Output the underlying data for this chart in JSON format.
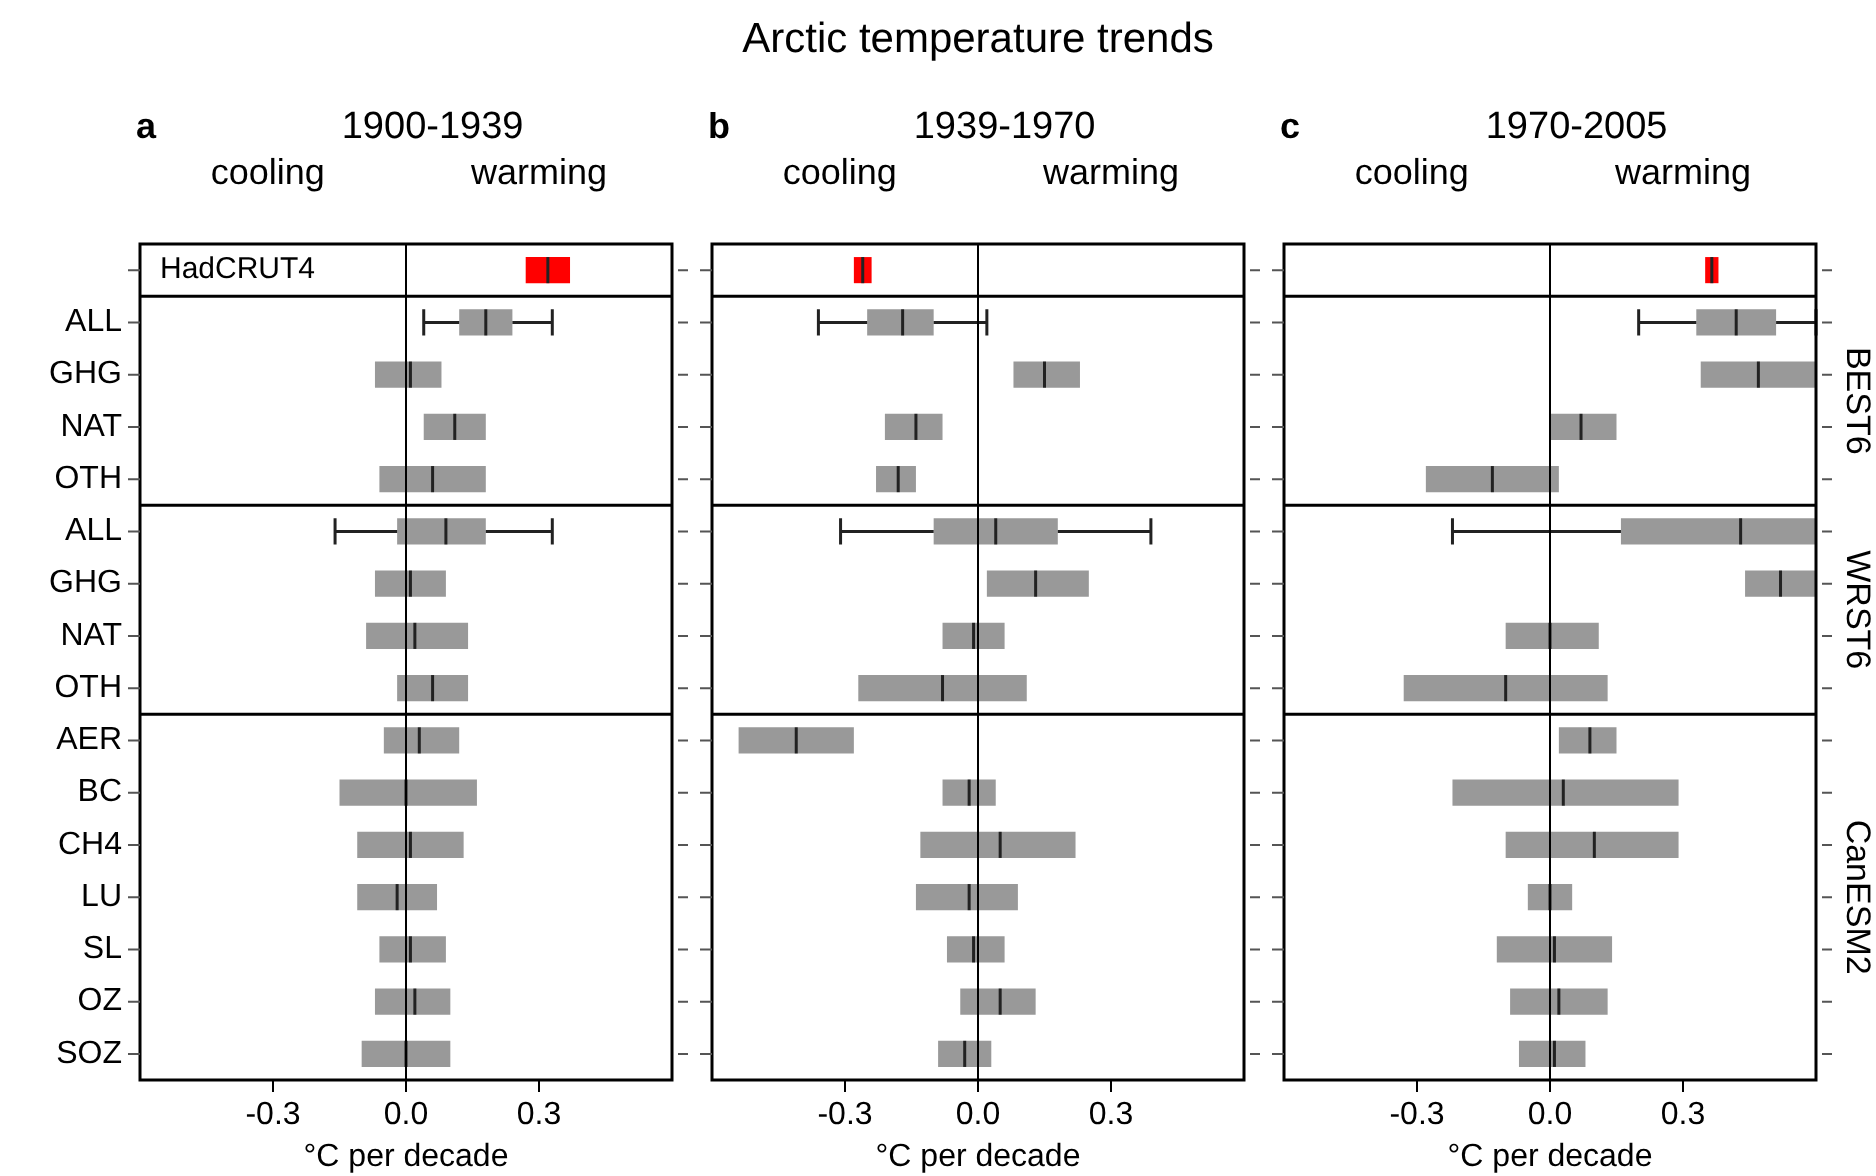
{
  "chart_data": [
    {
      "type": "other",
      "title": "Arctic temperature trends"
    },
    {
      "type": "box",
      "orientation": "horizontal",
      "title": "1900-1939",
      "annotations": [
        "a",
        "cooling",
        "warming"
      ],
      "categories": [
        null,
        "ALL",
        "GHG",
        "NAT",
        "OTH",
        "ALL",
        "GHG",
        "NAT",
        "OTH",
        "AER",
        "BC",
        "CH4",
        "LU",
        "SL",
        "OZ",
        "SOZ"
      ],
      "xlim": [
        -0.6,
        0.6
      ],
      "xticks": [
        {
          "value": -0.3,
          "label": "-0.3"
        },
        {
          "value": 0,
          "label": "0.0"
        },
        {
          "value": 0.3,
          "label": "0.3"
        }
      ],
      "xlabel": "°C per decade",
      "ref_lines": [
        {
          "axis": "x",
          "value": 0
        }
      ],
      "series": [
        {
          "name": "HadCRUT4",
          "color": "#ff0000",
          "boxes": [
            {
              "low": 0.27,
              "q1": 0.27,
              "median": 0.32,
              "q3": 0.37,
              "high": 0.37
            },
            null,
            null,
            null,
            null,
            null,
            null,
            null,
            null,
            null,
            null,
            null,
            null,
            null,
            null,
            null
          ]
        },
        {
          "color": "#999999",
          "boxes": [
            null,
            {
              "low": 0.04,
              "q1": 0.12,
              "median": 0.18,
              "q3": 0.24,
              "high": 0.33
            },
            {
              "low": -0.07,
              "q1": -0.07,
              "median": 0.01,
              "q3": 0.08,
              "high": 0.08
            },
            {
              "low": 0.04,
              "q1": 0.04,
              "median": 0.11,
              "q3": 0.18,
              "high": 0.18
            },
            {
              "low": -0.06,
              "q1": -0.06,
              "median": 0.06,
              "q3": 0.18,
              "high": 0.18
            },
            null,
            null,
            null,
            null,
            null,
            null,
            null,
            null,
            null,
            null,
            null
          ]
        },
        {
          "color": "#999999",
          "boxes": [
            null,
            null,
            null,
            null,
            null,
            {
              "low": -0.16,
              "q1": -0.02,
              "median": 0.09,
              "q3": 0.18,
              "high": 0.33
            },
            {
              "low": -0.07,
              "q1": -0.07,
              "median": 0.01,
              "q3": 0.09,
              "high": 0.09
            },
            {
              "low": -0.09,
              "q1": -0.09,
              "median": 0.02,
              "q3": 0.14,
              "high": 0.14
            },
            {
              "low": -0.02,
              "q1": -0.02,
              "median": 0.06,
              "q3": 0.14,
              "high": 0.14
            },
            null,
            null,
            null,
            null,
            null,
            null,
            null
          ]
        },
        {
          "color": "#999999",
          "boxes": [
            null,
            null,
            null,
            null,
            null,
            null,
            null,
            null,
            null,
            {
              "low": -0.05,
              "q1": -0.05,
              "median": 0.03,
              "q3": 0.12,
              "high": 0.12
            },
            {
              "low": -0.15,
              "q1": -0.15,
              "median": 0.0,
              "q3": 0.16,
              "high": 0.16
            },
            {
              "low": -0.11,
              "q1": -0.11,
              "median": 0.01,
              "q3": 0.13,
              "high": 0.13
            },
            {
              "low": -0.11,
              "q1": -0.11,
              "median": -0.02,
              "q3": 0.07,
              "high": 0.07
            },
            {
              "low": -0.06,
              "q1": -0.06,
              "median": 0.01,
              "q3": 0.09,
              "high": 0.09
            },
            {
              "low": -0.07,
              "q1": -0.07,
              "median": 0.02,
              "q3": 0.1,
              "high": 0.1
            },
            {
              "low": -0.1,
              "q1": -0.1,
              "median": 0.0,
              "q3": 0.1,
              "high": 0.1
            }
          ]
        }
      ]
    },
    {
      "type": "box",
      "orientation": "horizontal",
      "title": "1939-1970",
      "annotations": [
        "b",
        "cooling",
        "warming"
      ],
      "categories": [
        null,
        null,
        null,
        null,
        null,
        null,
        null,
        null,
        null,
        null,
        null,
        null,
        null,
        null,
        null,
        null
      ],
      "xlim": [
        -0.6,
        0.6
      ],
      "xticks": [
        {
          "value": -0.3,
          "label": "-0.3"
        },
        {
          "value": 0,
          "label": "0.0"
        },
        {
          "value": 0.3,
          "label": "0.3"
        }
      ],
      "xlabel": "°C per decade",
      "tick_labels": "x",
      "ref_lines": [
        {
          "axis": "x",
          "value": 0
        }
      ],
      "series": [
        {
          "color": "#ff0000",
          "boxes": [
            {
              "low": -0.28,
              "q1": -0.28,
              "median": -0.26,
              "q3": -0.24,
              "high": -0.24
            },
            null,
            null,
            null,
            null,
            null,
            null,
            null,
            null,
            null,
            null,
            null,
            null,
            null,
            null,
            null
          ]
        },
        {
          "color": "#999999",
          "boxes": [
            null,
            {
              "low": -0.36,
              "q1": -0.25,
              "median": -0.17,
              "q3": -0.1,
              "high": 0.02
            },
            {
              "low": 0.08,
              "q1": 0.08,
              "median": 0.15,
              "q3": 0.23,
              "high": 0.23
            },
            {
              "low": -0.21,
              "q1": -0.21,
              "median": -0.14,
              "q3": -0.08,
              "high": -0.08
            },
            {
              "low": -0.23,
              "q1": -0.23,
              "median": -0.18,
              "q3": -0.14,
              "high": -0.14
            },
            null,
            null,
            null,
            null,
            null,
            null,
            null,
            null,
            null,
            null,
            null
          ]
        },
        {
          "color": "#999999",
          "boxes": [
            null,
            null,
            null,
            null,
            null,
            {
              "low": -0.31,
              "q1": -0.1,
              "median": 0.04,
              "q3": 0.18,
              "high": 0.39
            },
            {
              "low": 0.02,
              "q1": 0.02,
              "median": 0.13,
              "q3": 0.25,
              "high": 0.25
            },
            {
              "low": -0.08,
              "q1": -0.08,
              "median": -0.01,
              "q3": 0.06,
              "high": 0.06
            },
            {
              "low": -0.27,
              "q1": -0.27,
              "median": -0.08,
              "q3": 0.11,
              "high": 0.11
            },
            null,
            null,
            null,
            null,
            null,
            null,
            null
          ]
        },
        {
          "color": "#999999",
          "boxes": [
            null,
            null,
            null,
            null,
            null,
            null,
            null,
            null,
            null,
            {
              "low": -0.54,
              "q1": -0.54,
              "median": -0.41,
              "q3": -0.28,
              "high": -0.28
            },
            {
              "low": -0.08,
              "q1": -0.08,
              "median": -0.02,
              "q3": 0.04,
              "high": 0.04
            },
            {
              "low": -0.13,
              "q1": -0.13,
              "median": 0.05,
              "q3": 0.22,
              "high": 0.22
            },
            {
              "low": -0.14,
              "q1": -0.14,
              "median": -0.02,
              "q3": 0.09,
              "high": 0.09
            },
            {
              "low": -0.07,
              "q1": -0.07,
              "median": -0.01,
              "q3": 0.06,
              "high": 0.06
            },
            {
              "low": -0.04,
              "q1": -0.04,
              "median": 0.05,
              "q3": 0.13,
              "high": 0.13
            },
            {
              "low": -0.09,
              "q1": -0.09,
              "median": -0.03,
              "q3": 0.03,
              "high": 0.03
            }
          ]
        }
      ]
    },
    {
      "type": "box",
      "orientation": "horizontal",
      "title": "1970-2005",
      "annotations": [
        "c",
        "cooling",
        "warming"
      ],
      "categories": [
        null,
        null,
        null,
        null,
        null,
        null,
        null,
        null,
        null,
        null,
        null,
        null,
        null,
        null,
        null,
        null
      ],
      "xlim": [
        -0.6,
        0.6
      ],
      "xticks": [
        {
          "value": -0.3,
          "label": "-0.3"
        },
        {
          "value": 0,
          "label": "0.0"
        },
        {
          "value": 0.3,
          "label": "0.3"
        }
      ],
      "xlabel": "°C per decade",
      "tick_labels": "x",
      "ref_lines": [
        {
          "axis": "x",
          "value": 0
        }
      ],
      "series": [
        {
          "color": "#ff0000",
          "boxes": [
            {
              "low": 0.35,
              "q1": 0.35,
              "median": 0.365,
              "q3": 0.38,
              "high": 0.38
            },
            null,
            null,
            null,
            null,
            null,
            null,
            null,
            null,
            null,
            null,
            null,
            null,
            null,
            null,
            null
          ]
        },
        {
          "name": "BEST6",
          "color": "#999999",
          "boxes": [
            null,
            {
              "low": 0.2,
              "q1": 0.33,
              "median": 0.42,
              "q3": 0.51,
              "high": 0.6
            },
            {
              "low": 0.34,
              "q1": 0.34,
              "median": 0.47,
              "q3": 0.6,
              "high": 0.6
            },
            {
              "low": 0.0,
              "q1": 0.0,
              "median": 0.07,
              "q3": 0.15,
              "high": 0.15
            },
            {
              "low": -0.28,
              "q1": -0.28,
              "median": -0.13,
              "q3": 0.02,
              "high": 0.02
            },
            null,
            null,
            null,
            null,
            null,
            null,
            null,
            null,
            null,
            null,
            null
          ]
        },
        {
          "name": "WRST6",
          "color": "#999999",
          "boxes": [
            null,
            null,
            null,
            null,
            null,
            {
              "low": -0.22,
              "q1": 0.16,
              "median": 0.43,
              "q3": 0.6,
              "high": 0.6
            },
            {
              "low": 0.44,
              "q1": 0.44,
              "median": 0.52,
              "q3": 0.6,
              "high": 0.6
            },
            {
              "low": -0.1,
              "q1": -0.1,
              "median": 0.0,
              "q3": 0.11,
              "high": 0.11
            },
            {
              "low": -0.33,
              "q1": -0.33,
              "median": -0.1,
              "q3": 0.13,
              "high": 0.13
            },
            null,
            null,
            null,
            null,
            null,
            null,
            null
          ]
        },
        {
          "name": "CanESM2",
          "color": "#999999",
          "boxes": [
            null,
            null,
            null,
            null,
            null,
            null,
            null,
            null,
            null,
            {
              "low": 0.02,
              "q1": 0.02,
              "median": 0.09,
              "q3": 0.15,
              "high": 0.15
            },
            {
              "low": -0.22,
              "q1": -0.22,
              "median": 0.03,
              "q3": 0.29,
              "high": 0.29
            },
            {
              "low": -0.1,
              "q1": -0.1,
              "median": 0.1,
              "q3": 0.29,
              "high": 0.29
            },
            {
              "low": -0.05,
              "q1": -0.05,
              "median": 0.0,
              "q3": 0.05,
              "high": 0.05
            },
            {
              "low": -0.12,
              "q1": -0.12,
              "median": 0.01,
              "q3": 0.14,
              "high": 0.14
            },
            {
              "low": -0.09,
              "q1": -0.09,
              "median": 0.02,
              "q3": 0.13,
              "high": 0.13
            },
            {
              "low": -0.07,
              "q1": -0.07,
              "median": 0.01,
              "q3": 0.08,
              "high": 0.08
            }
          ]
        }
      ]
    }
  ]
}
